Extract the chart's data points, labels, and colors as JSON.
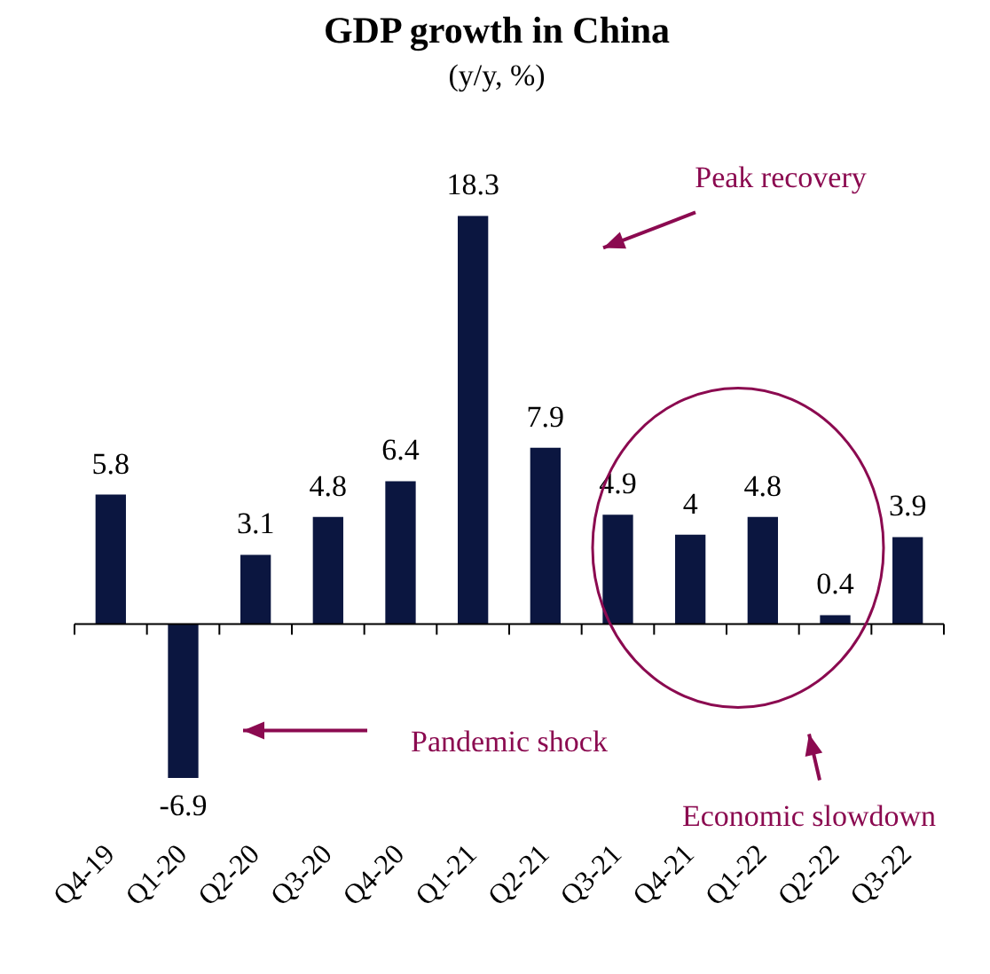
{
  "chart_data": {
    "type": "bar",
    "title": "GDP growth in China",
    "subtitle": "(y/y, %)",
    "categories": [
      "Q4-19",
      "Q1-20",
      "Q2-20",
      "Q3-20",
      "Q4-20",
      "Q1-21",
      "Q2-21",
      "Q3-21",
      "Q4-21",
      "Q1-22",
      "Q2-22",
      "Q3-22"
    ],
    "values": [
      5.8,
      -6.9,
      3.1,
      4.8,
      6.4,
      18.3,
      7.9,
      4.9,
      4,
      4.8,
      0.4,
      3.9
    ],
    "color": "#0b1640",
    "data_labels": true,
    "grid": false,
    "legend": false,
    "annotations": [
      "Peak recovery",
      "Pandemic shock",
      "Economic slowdown"
    ]
  }
}
